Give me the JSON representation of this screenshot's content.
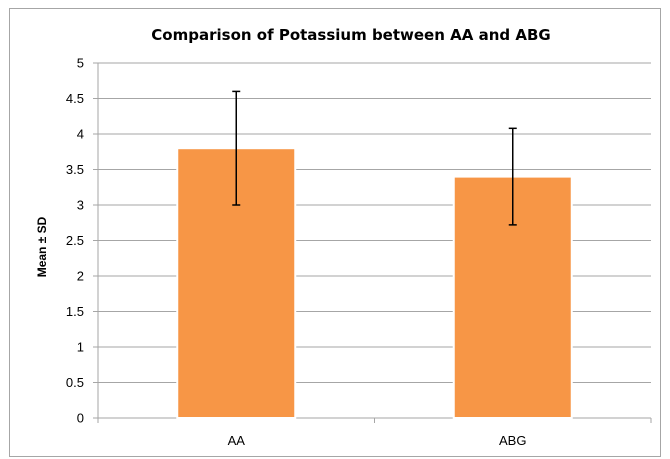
{
  "chart_data": {
    "type": "bar",
    "title": "Comparison of Potassium between AA and ABG",
    "xlabel": "",
    "ylabel": "Mean ± SD",
    "categories": [
      "AA",
      "ABG"
    ],
    "series": [
      {
        "values": [
          3.8,
          3.4
        ],
        "error": [
          0.8,
          0.68
        ]
      }
    ],
    "ylim": [
      0,
      5
    ],
    "yticks": [
      "0",
      "0.5",
      "1",
      "1.5",
      "2",
      "2.5",
      "3",
      "3.5",
      "4",
      "4.5",
      "5"
    ],
    "grid": true,
    "legend": "none",
    "colors": {
      "bar": "#f79646",
      "bar_edge": "#ffffff",
      "grid": "#a6a6a6",
      "error": "#000000"
    }
  }
}
